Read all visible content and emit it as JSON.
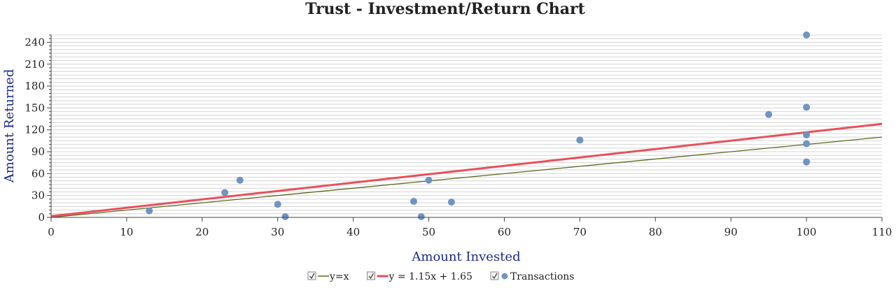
{
  "chart_data": {
    "type": "scatter",
    "title": "Trust - Investment/Return Chart",
    "xlabel": "Amount Invested",
    "ylabel": "Amount Returned",
    "xlim": [
      0,
      110
    ],
    "ylim": [
      0,
      250
    ],
    "x_ticks": [
      0,
      10,
      20,
      30,
      40,
      50,
      60,
      70,
      80,
      90,
      100,
      110
    ],
    "y_ticks": [
      0,
      30,
      60,
      90,
      120,
      150,
      180,
      210,
      240
    ],
    "grid": true,
    "legend_position": "bottom",
    "series": [
      {
        "name": "y=x",
        "kind": "line",
        "slope": 1,
        "intercept": 0,
        "color": "#5c6a1e"
      },
      {
        "name": "y = 1.15x + 1.65",
        "kind": "line",
        "slope": 1.15,
        "intercept": 1.65,
        "color": "#e8505b"
      },
      {
        "name": "Transactions",
        "kind": "points",
        "color": "#7094c1",
        "points": [
          {
            "x": 13,
            "y": 9
          },
          {
            "x": 23,
            "y": 34
          },
          {
            "x": 25,
            "y": 51
          },
          {
            "x": 30,
            "y": 18
          },
          {
            "x": 31,
            "y": 1
          },
          {
            "x": 48,
            "y": 22
          },
          {
            "x": 49,
            "y": 1
          },
          {
            "x": 50,
            "y": 51
          },
          {
            "x": 53,
            "y": 21
          },
          {
            "x": 70,
            "y": 106
          },
          {
            "x": 95,
            "y": 141
          },
          {
            "x": 100,
            "y": 250
          },
          {
            "x": 100,
            "y": 151
          },
          {
            "x": 100,
            "y": 113
          },
          {
            "x": 100,
            "y": 101
          },
          {
            "x": 100,
            "y": 76
          }
        ]
      }
    ]
  }
}
